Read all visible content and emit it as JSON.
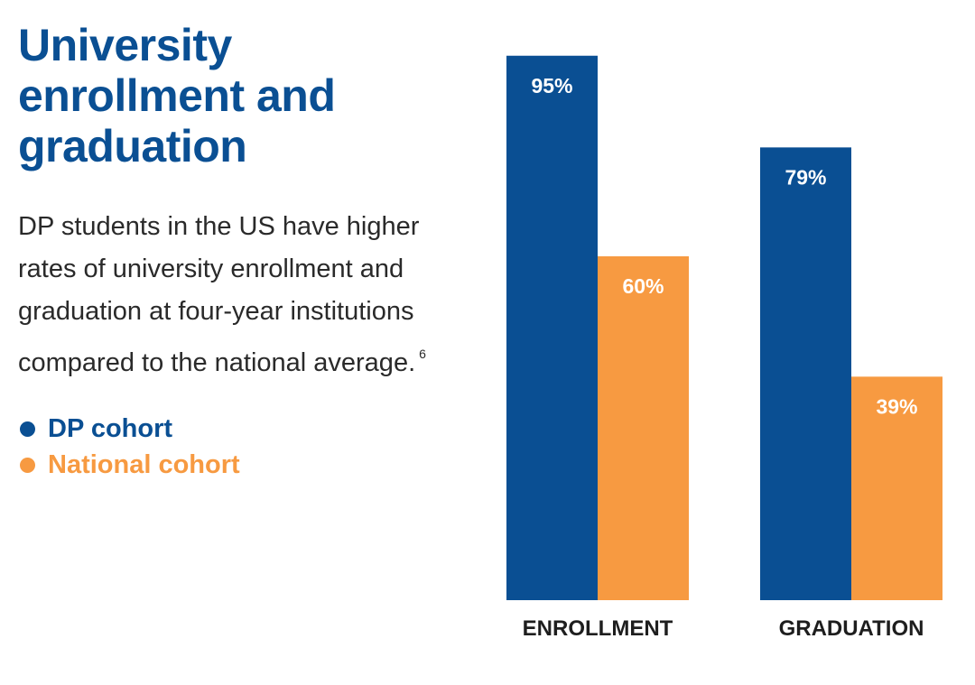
{
  "title": "University enrollment and graduation",
  "description": "DP students in the US have higher rates of university enrollment and graduation at four-year institutions compared to the national average.",
  "footnote": "6",
  "colors": {
    "dp": "#0a4f93",
    "national": "#f79a41",
    "title": "#0a4f93"
  },
  "chart_data": {
    "type": "bar",
    "categories": [
      "ENROLLMENT",
      "GRADUATION"
    ],
    "series": [
      {
        "name": "DP cohort",
        "values": [
          95,
          79
        ],
        "labels": [
          "95%",
          "79%"
        ],
        "color": "#0a4f93"
      },
      {
        "name": "National cohort",
        "values": [
          60,
          39
        ],
        "labels": [
          "60%",
          "39%"
        ],
        "color": "#f79a41"
      }
    ],
    "ylim": [
      0,
      100
    ],
    "grid": false,
    "legend": "left"
  }
}
